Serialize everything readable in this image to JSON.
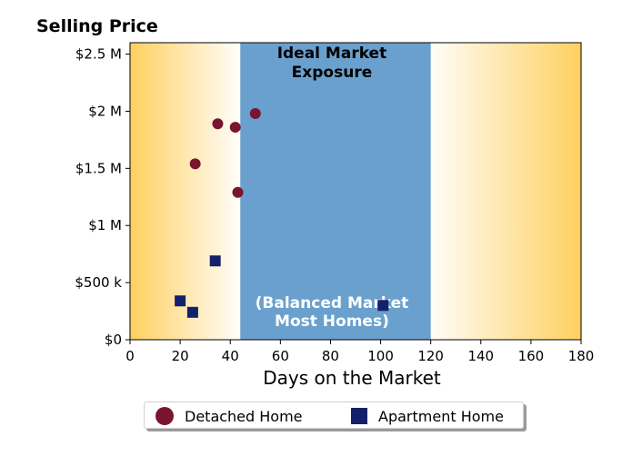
{
  "chart_data": {
    "type": "scatter",
    "title": "Selling Price",
    "xlabel": "Days on the Market",
    "ylabel": "",
    "xlim": [
      0,
      180
    ],
    "ylim": [
      0,
      2600000
    ],
    "x_ticks": [
      0,
      20,
      40,
      60,
      80,
      100,
      120,
      140,
      160,
      180
    ],
    "x_tick_labels": [
      "0",
      "20",
      "40",
      "60",
      "80",
      "100",
      "120",
      "140",
      "160",
      "180"
    ],
    "y_ticks": [
      0,
      500000,
      1000000,
      1500000,
      2000000,
      2500000
    ],
    "y_tick_labels": [
      "$0",
      "$500 k",
      "$1 M",
      "$1.5 M",
      "$2 M",
      "$2.5 M"
    ],
    "grid": false,
    "legend_position": "bottom-center",
    "shaded_region": {
      "x_range": [
        44,
        120
      ],
      "label_top_lines": [
        "Ideal Market",
        "Exposure"
      ],
      "label_bottom_lines": [
        "(Balanced Market",
        "Most Homes)"
      ],
      "color": "#6aa0cd"
    },
    "background_gradient_color": "#ffd060",
    "series": [
      {
        "name": "Detached Home",
        "marker": "circle",
        "color": "#7a1530",
        "points": [
          {
            "x": 26,
            "y": 1540000
          },
          {
            "x": 35,
            "y": 1890000
          },
          {
            "x": 42,
            "y": 1860000
          },
          {
            "x": 43,
            "y": 1290000
          },
          {
            "x": 50,
            "y": 1980000
          }
        ]
      },
      {
        "name": "Apartment Home",
        "marker": "square",
        "color": "#13216b",
        "points": [
          {
            "x": 20,
            "y": 340000
          },
          {
            "x": 25,
            "y": 240000
          },
          {
            "x": 34,
            "y": 690000
          },
          {
            "x": 101,
            "y": 300000
          }
        ]
      }
    ]
  }
}
